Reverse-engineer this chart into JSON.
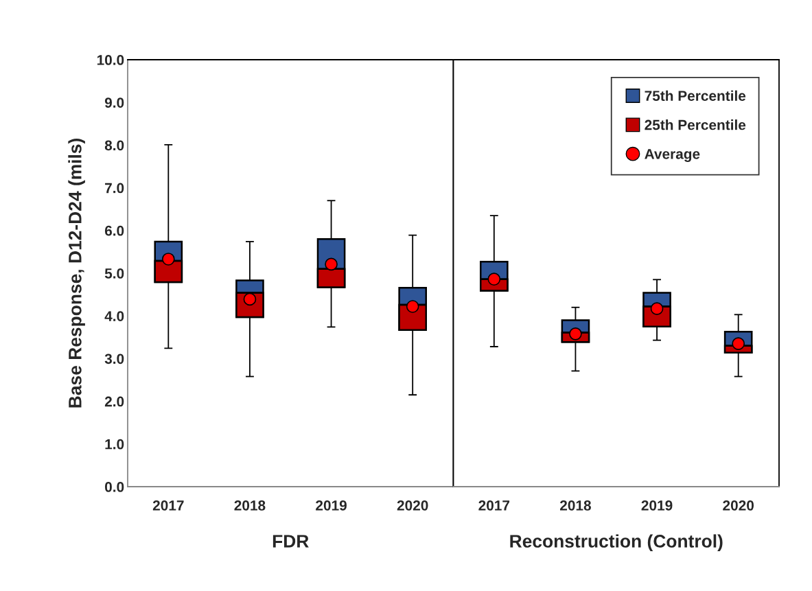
{
  "chart_data": [
    {
      "type": "box",
      "categories": [
        "2017",
        "2018",
        "2019",
        "2020"
      ],
      "ylabel": "Base Response, D12-D24 (mils)",
      "xlabel": "FDR",
      "ylim": [
        0,
        10
      ],
      "yticks": [
        {
          "value": 0,
          "label": "0.0"
        },
        {
          "value": 1,
          "label": "1.0"
        },
        {
          "value": 2,
          "label": "2.0"
        },
        {
          "value": 3,
          "label": "3.0"
        },
        {
          "value": 4,
          "label": "4.0"
        },
        {
          "value": 5,
          "label": "5.0"
        },
        {
          "value": 6,
          "label": "6.0"
        },
        {
          "value": 7,
          "label": "7.0"
        },
        {
          "value": 8,
          "label": "8.0"
        },
        {
          "value": 9,
          "label": "9.0"
        },
        {
          "value": 10,
          "label": "10.0"
        }
      ],
      "series": [
        {
          "color": "#2f5597",
          "boxes": [
            {
              "low": 3.24,
              "q1": 4.79,
              "median": 5.29,
              "q3": 5.74,
              "high": 8.01
            },
            {
              "low": 2.58,
              "q1": 3.97,
              "median": 4.54,
              "q3": 4.83,
              "high": 5.74
            },
            {
              "low": 3.74,
              "q1": 4.67,
              "median": 5.1,
              "q3": 5.8,
              "high": 6.7
            },
            {
              "low": 2.15,
              "q1": 3.67,
              "median": 4.26,
              "q3": 4.66,
              "high": 5.89
            }
          ]
        },
        {
          "type": "bar",
          "color": "#c00000",
          "base": [
            4.79,
            3.97,
            4.67,
            3.67
          ],
          "values": [
            0.5,
            0.57,
            0.43,
            0.59
          ]
        },
        {
          "type": "scatter",
          "color": "#ff0000",
          "values": [
            5.33,
            4.39,
            5.21,
            4.22
          ]
        }
      ],
      "marker": "circle",
      "grid": false,
      "legend": false
    },
    {
      "type": "box",
      "categories": [
        "2017",
        "2018",
        "2019",
        "2020"
      ],
      "xlabel": "Reconstruction (Control)",
      "tick_labels": "x",
      "ylim": [
        0,
        10
      ],
      "series": [
        {
          "name": "75th Percentile",
          "color": "#2f5597",
          "boxes": [
            {
              "low": 3.28,
              "q1": 4.59,
              "median": 4.86,
              "q3": 5.27,
              "high": 6.35
            },
            {
              "low": 2.71,
              "q1": 3.39,
              "median": 3.61,
              "q3": 3.9,
              "high": 4.2
            },
            {
              "low": 3.43,
              "q1": 3.75,
              "median": 4.22,
              "q3": 4.54,
              "high": 4.85
            },
            {
              "low": 2.58,
              "q1": 3.14,
              "median": 3.3,
              "q3": 3.63,
              "high": 4.03
            }
          ]
        },
        {
          "type": "bar",
          "name": "25th Percentile",
          "color": "#c00000",
          "base": [
            4.59,
            3.39,
            3.75,
            3.14
          ],
          "values": [
            0.27,
            0.22,
            0.47,
            0.16
          ]
        },
        {
          "type": "scatter",
          "name": "Average",
          "color": "#ff0000",
          "values": [
            4.86,
            3.58,
            4.17,
            3.35
          ]
        }
      ],
      "marker": "circle",
      "grid": false,
      "legend": "top right"
    }
  ]
}
